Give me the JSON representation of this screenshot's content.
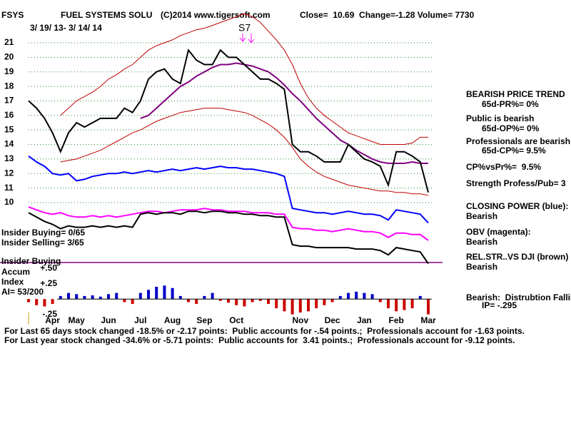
{
  "header": {
    "symbol": "FSYS",
    "company": "FUEL SYSTEMS SOLU",
    "source": "(C)2014 www.tigersoft.com",
    "quote": "Close=  10.69  Change=-1.28 Volume= 7730",
    "date_range": "3/ 19/ 13- 3/ 14/ 14",
    "signal": "S7"
  },
  "insider": {
    "buying": "Insider Buying= 0/65",
    "selling": "Insider Selling= 3/65",
    "line_label": "Insider Buying",
    "accum_1": "Accum",
    "accum_2": "Index",
    "ai": "AI= 53/200"
  },
  "side_panel": [
    "BEARISH PRICE TREND",
    "65d-PR%= 0%",
    "Public is bearish",
    "65d-OP%= 0%",
    "Professionals are bearish",
    "65d-CP%= 9.5%",
    "CP%vsPr%=  9.5%",
    "Strength Profess/Pub= 3",
    "CLOSING POWER (blue):",
    "Bearish",
    "OBV (magenta):",
    "Bearish",
    "REL.STR..VS DJI (brown)",
    "Bearish",
    "Bearish:  Distrubtion Falling",
    "IP= -.295"
  ],
  "footer": [
    "For Last 65 days stock changed -18.5% or -2.17 points:  Public accounts for -.54 points.;  Professionals account for -1.63 points.",
    "For Last year stock changed -34.6% or -5.71 points:  Public accounts for  3.41 points.;  Professionals account for -9.12 points."
  ],
  "chart_data": [
    {
      "type": "line",
      "categories": [
        null,
        null,
        null,
        "Apr",
        null,
        null,
        "May",
        null,
        null,
        null,
        "Jun",
        null,
        null,
        null,
        "Jul",
        null,
        null,
        null,
        "Aug",
        null,
        null,
        null,
        "Sep",
        null,
        null,
        null,
        "Oct",
        null,
        null,
        null,
        null,
        null,
        null,
        null,
        "Nov",
        null,
        null,
        null,
        "Dec",
        null,
        null,
        null,
        "Jan",
        null,
        null,
        null,
        "Feb",
        null,
        null,
        null,
        "Mar"
      ],
      "ylim": [
        5.5,
        23.5
      ],
      "yticks": [
        10,
        11,
        12,
        13,
        14,
        15,
        16,
        17,
        18,
        19,
        20,
        21
      ],
      "grid": true,
      "series": [
        {
          "color": "#c00000",
          "values": [
            null,
            null,
            null,
            null,
            16,
            16.5,
            17,
            17.3,
            17.6,
            18,
            18.5,
            18.8,
            19.2,
            19.5,
            20,
            20.5,
            20.8,
            21,
            21.2,
            21.5,
            21.7,
            21.9,
            22,
            22.2,
            22.4,
            22.6,
            22.8,
            23,
            22.8,
            22.4,
            21.8,
            21.2,
            20.5,
            19.5,
            18.2,
            17.2,
            16.5,
            16,
            15.6,
            15.2,
            14.8,
            14.6,
            14.4,
            14.2,
            14,
            14,
            14,
            14,
            14.1,
            14.5,
            14.5
          ]
        },
        {
          "color": "#c00000",
          "values": [
            null,
            null,
            null,
            null,
            12.8,
            12.9,
            13,
            13.2,
            13.4,
            13.6,
            13.9,
            14.2,
            14.5,
            14.8,
            15,
            15.3,
            15.6,
            15.8,
            16,
            16.2,
            16.3,
            16.4,
            16.5,
            16.5,
            16.5,
            16.4,
            16.3,
            16.2,
            16,
            15.7,
            15.4,
            15,
            14.5,
            13.8,
            13,
            12.5,
            12.1,
            11.8,
            11.6,
            11.4,
            11.2,
            11.1,
            11,
            10.9,
            10.8,
            10.8,
            10.7,
            10.7,
            10.6,
            10.6,
            10.5
          ]
        },
        {
          "color": "#800080",
          "values": [
            null,
            null,
            null,
            null,
            null,
            null,
            null,
            null,
            null,
            null,
            null,
            null,
            null,
            null,
            15.8,
            16,
            16.5,
            17,
            17.5,
            18,
            18.3,
            18.7,
            19,
            19.3,
            19.5,
            19.5,
            19.6,
            19.5,
            19.4,
            19.2,
            19,
            18.6,
            18.1,
            17.5,
            17,
            16.4,
            15.8,
            15.3,
            14.8,
            14.3,
            14,
            13.6,
            13.3,
            13,
            12.8,
            12.7,
            12.7,
            12.7,
            12.8,
            12.7,
            12.7
          ]
        },
        {
          "color": "#000000",
          "values": [
            17,
            16.5,
            15.8,
            14.8,
            13.5,
            14.8,
            15.5,
            15.2,
            15.5,
            15.8,
            15.8,
            15.8,
            16.5,
            16.2,
            17,
            18.5,
            19,
            19.2,
            18.5,
            18.2,
            20.5,
            19.8,
            19.5,
            19.5,
            20.5,
            20,
            20,
            19.5,
            19,
            18.5,
            18.5,
            18.2,
            17.8,
            14,
            13.5,
            13.5,
            13.2,
            12.8,
            12.8,
            12.8,
            14,
            13.5,
            13,
            12.8,
            12.5,
            11.2,
            13.5,
            13.5,
            13.2,
            12.8,
            10.7
          ]
        },
        {
          "color": "#0000ff",
          "values": [
            13.2,
            12.8,
            12.5,
            12,
            11.9,
            12,
            11.5,
            11.6,
            11.8,
            11.9,
            12,
            12,
            12.1,
            12,
            12.1,
            12.2,
            12.1,
            12.2,
            12.3,
            12.2,
            12.3,
            12.4,
            12.3,
            12.4,
            12.5,
            12.4,
            12.4,
            12.3,
            12.3,
            12.2,
            12.1,
            12,
            11.8,
            9.6,
            9.5,
            9.4,
            9.3,
            9.3,
            9.2,
            9.3,
            9.4,
            9.3,
            9.2,
            9.2,
            9.1,
            8.8,
            9.5,
            9.4,
            9.3,
            9.2,
            8.6
          ]
        },
        {
          "color": "#ff00ff",
          "values": [
            9.7,
            9.5,
            9.3,
            9.2,
            9.3,
            9.1,
            9,
            9,
            9.1,
            9,
            9.1,
            9,
            9.1,
            9.2,
            9.3,
            9.4,
            9.4,
            9.3,
            9.4,
            9.5,
            9.5,
            9.5,
            9.6,
            9.5,
            9.5,
            9.4,
            9.4,
            9.4,
            9.3,
            9.3,
            9.3,
            9.2,
            9.2,
            8.3,
            8.2,
            8.2,
            8.1,
            8.1,
            8,
            8.1,
            8.2,
            8.1,
            8,
            8,
            7.9,
            7.6,
            7.9,
            7.9,
            7.8,
            7.8,
            7.4
          ]
        },
        {
          "color": "#000000",
          "values": [
            9.3,
            9,
            8.7,
            8.5,
            8.2,
            8.4,
            8.3,
            8.3,
            8.4,
            8.3,
            8.4,
            8.3,
            8.4,
            8.3,
            9.2,
            9.3,
            9.2,
            9.3,
            9.3,
            9.2,
            9.4,
            9.4,
            9.3,
            9.4,
            9.4,
            9.3,
            9.3,
            9.2,
            9.2,
            9.1,
            9.1,
            9,
            9,
            7.1,
            7,
            7,
            6.9,
            6.9,
            6.9,
            6.9,
            6.9,
            6.8,
            6.8,
            6.8,
            6.7,
            6.4,
            6.9,
            6.8,
            6.7,
            6.6,
            5.8
          ]
        }
      ]
    },
    {
      "type": "bar",
      "ylim": [
        -0.3,
        0.55
      ],
      "yticks": [
        {
          "value": 0.5,
          "label": "+.50"
        },
        {
          "value": 0.25,
          "label": "+.25"
        },
        {
          "value": -0.25,
          "label": "-.25"
        }
      ],
      "pos_color": "#0000cc",
      "neg_color": "#cc0000",
      "values": [
        -0.05,
        -0.1,
        -0.12,
        -0.08,
        0.05,
        0.1,
        0.08,
        0.05,
        0.06,
        0.04,
        0.08,
        0.1,
        -0.05,
        -0.08,
        0.1,
        0.15,
        0.2,
        0.22,
        0.18,
        0.05,
        -0.05,
        -0.08,
        0.05,
        0.1,
        -0.03,
        -0.06,
        -0.1,
        -0.12,
        -0.05,
        -0.03,
        -0.08,
        -0.15,
        -0.2,
        -0.25,
        -0.22,
        -0.2,
        -0.15,
        -0.1,
        -0.05,
        0.05,
        0.1,
        0.12,
        0.1,
        0.08,
        -0.05,
        -0.15,
        -0.2,
        -0.18,
        -0.15,
        0.05,
        -0.25
      ]
    }
  ]
}
